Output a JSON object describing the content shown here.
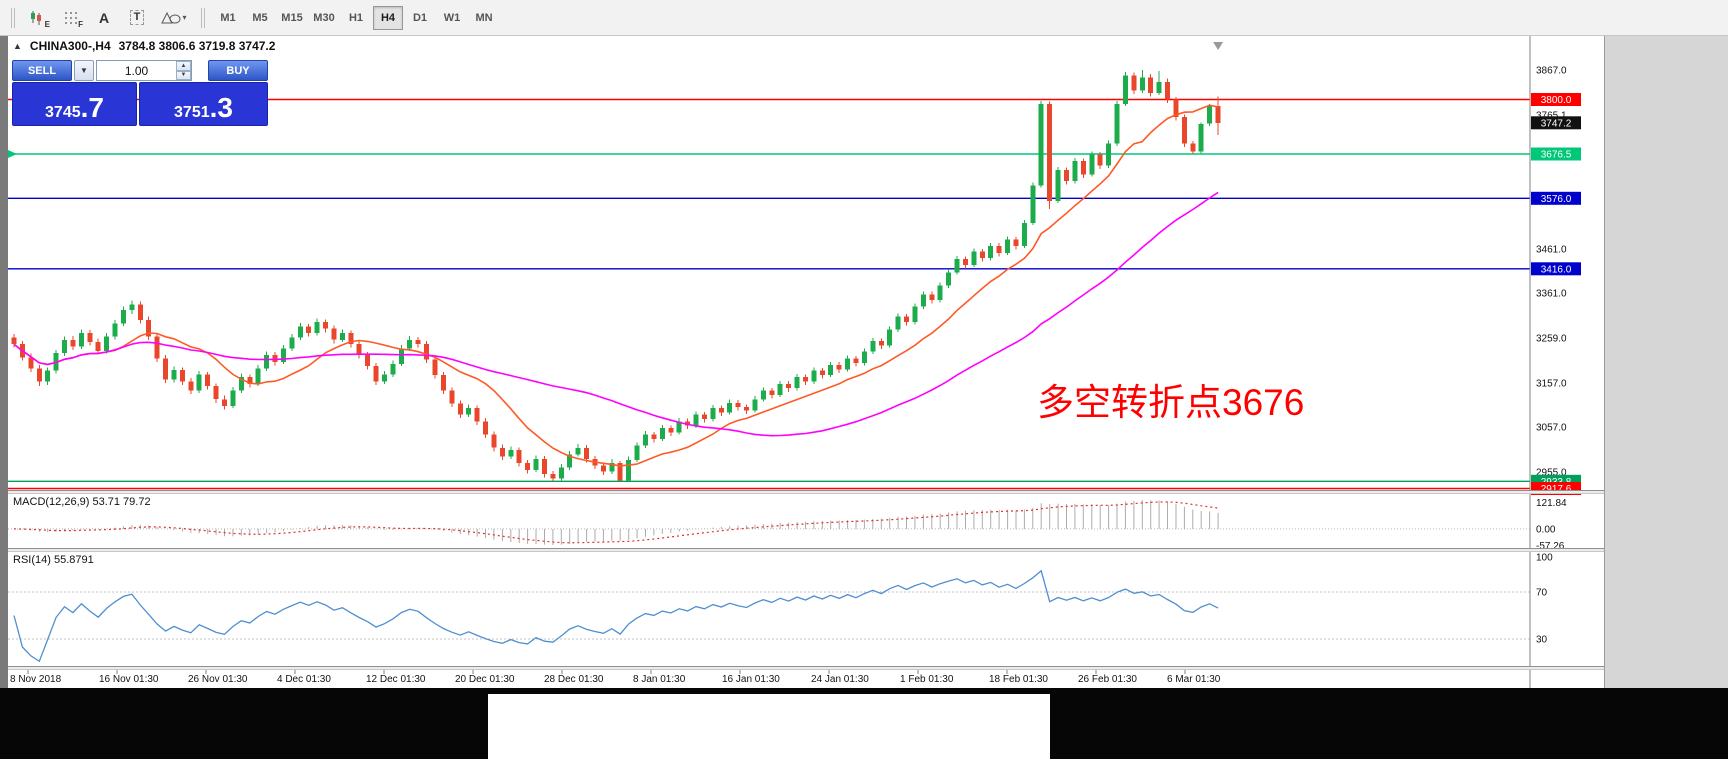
{
  "toolbar": {
    "tools": [
      {
        "id": "chart-expert",
        "glyph": "E"
      },
      {
        "id": "grid",
        "glyph": "F"
      },
      {
        "id": "text-label",
        "glyph": "A"
      },
      {
        "id": "text-box",
        "glyph": "T"
      },
      {
        "id": "shapes",
        "glyph": "▾"
      }
    ],
    "timeframes": [
      "M1",
      "M5",
      "M15",
      "M30",
      "H1",
      "H4",
      "D1",
      "W1",
      "MN"
    ],
    "active_timeframe": "H4"
  },
  "chart": {
    "expand_marker": "▲",
    "title": "CHINA300-,H4",
    "ohlc_text": "3784.8 3806.6 3719.8 3747.2",
    "annotation": {
      "text": "多空转折点3676",
      "color": "#ff0000"
    },
    "axis_prices": [
      3867.0,
      3765.1,
      3461.0,
      3361.0,
      3259.0,
      3157.0,
      3057.0,
      2955.0
    ],
    "hlines": [
      {
        "price": 3800.0,
        "label": "3800.0",
        "color": "#ff0000"
      },
      {
        "price": 3676.5,
        "label": "3676.5",
        "color": "#00c878",
        "marker": true
      },
      {
        "price": 3576.0,
        "label": "3576.0",
        "color": "#0000cc"
      },
      {
        "price": 3416.0,
        "label": "3416.0",
        "color": "#0000cc"
      },
      {
        "price": 2933.8,
        "label": "2933.8",
        "color": "#00a05a"
      },
      {
        "price": 2917.6,
        "label": "2917.6",
        "color": "#ff0000"
      }
    ],
    "current_price": {
      "price": 3747.2,
      "label": "3747.2",
      "color": "#111111"
    }
  },
  "trade_panel": {
    "sell_label": "SELL",
    "buy_label": "BUY",
    "volume": "1.00",
    "sell_price": {
      "main": "3745",
      "frac": ".7"
    },
    "buy_price": {
      "main": "3751",
      "frac": ".3"
    }
  },
  "macd": {
    "header": "MACD(12,26,9) 53.71 79.72",
    "axis": [
      "121.84",
      "0.00",
      "-57.26"
    ]
  },
  "rsi": {
    "header": "RSI(14) 55.8791",
    "axis": [
      "100",
      "70",
      "30"
    ],
    "levels": [
      70,
      30
    ]
  },
  "time_axis": [
    "8 Nov 2018",
    "16 Nov 01:30",
    "26 Nov 01:30",
    "4 Dec 01:30",
    "12 Dec 01:30",
    "20 Dec 01:30",
    "28 Dec 01:30",
    "8 Jan 01:30",
    "16 Jan 01:30",
    "24 Jan 01:30",
    "1 Feb 01:30",
    "18 Feb 01:30",
    "26 Feb 01:30",
    "6 Mar 01:30"
  ],
  "chart_data": {
    "type": "candlestick",
    "symbol": "CHINA300-",
    "timeframe": "H4",
    "title": "CHINA300-,H4",
    "last_ohlc": {
      "open": 3784.8,
      "high": 3806.6,
      "low": 3719.8,
      "close": 3747.2
    },
    "y_axis_range": [
      2917.6,
      3867.0
    ],
    "colors": {
      "up": "#1cac4b",
      "down": "#e8472b",
      "ma_fast": "#ff5a26",
      "ma_slow": "#ff00ff",
      "rsi": "#4f8fd0",
      "macd_hist": "#ababab",
      "macd_signal": "#e03030"
    },
    "overlays": [
      {
        "name": "MA fast",
        "type": "sma",
        "period": 12,
        "color": "#ff5a26"
      },
      {
        "name": "MA slow",
        "type": "sma",
        "period": 40,
        "color": "#ff00ff"
      }
    ],
    "indicators": [
      {
        "name": "MACD",
        "params": [
          12,
          26,
          9
        ],
        "values": [
          53.71,
          79.72
        ]
      },
      {
        "name": "RSI",
        "params": [
          14
        ],
        "values": [
          55.8791
        ]
      }
    ],
    "candles": [
      [
        3260,
        3268,
        3238,
        3245
      ],
      [
        3245,
        3252,
        3208,
        3215
      ],
      [
        3215,
        3224,
        3182,
        3190
      ],
      [
        3190,
        3198,
        3150,
        3160
      ],
      [
        3160,
        3192,
        3152,
        3185
      ],
      [
        3185,
        3232,
        3178,
        3225
      ],
      [
        3225,
        3262,
        3218,
        3255
      ],
      [
        3255,
        3264,
        3232,
        3240
      ],
      [
        3240,
        3278,
        3234,
        3270
      ],
      [
        3270,
        3277,
        3242,
        3250
      ],
      [
        3250,
        3258,
        3222,
        3230
      ],
      [
        3230,
        3270,
        3224,
        3262
      ],
      [
        3262,
        3300,
        3256,
        3292
      ],
      [
        3292,
        3330,
        3286,
        3322
      ],
      [
        3322,
        3344,
        3314,
        3335
      ],
      [
        3335,
        3342,
        3292,
        3300
      ],
      [
        3300,
        3308,
        3254,
        3262
      ],
      [
        3262,
        3270,
        3204,
        3212
      ],
      [
        3212,
        3220,
        3157,
        3165
      ],
      [
        3165,
        3194,
        3158,
        3186
      ],
      [
        3186,
        3192,
        3152,
        3160
      ],
      [
        3160,
        3168,
        3132,
        3140
      ],
      [
        3140,
        3184,
        3134,
        3176
      ],
      [
        3176,
        3182,
        3142,
        3150
      ],
      [
        3150,
        3156,
        3112,
        3120
      ],
      [
        3120,
        3128,
        3097,
        3105
      ],
      [
        3105,
        3148,
        3100,
        3140
      ],
      [
        3140,
        3178,
        3134,
        3170
      ],
      [
        3170,
        3176,
        3147,
        3155
      ],
      [
        3155,
        3198,
        3150,
        3190
      ],
      [
        3190,
        3228,
        3184,
        3220
      ],
      [
        3220,
        3227,
        3197,
        3205
      ],
      [
        3205,
        3243,
        3200,
        3235
      ],
      [
        3235,
        3268,
        3230,
        3260
      ],
      [
        3260,
        3293,
        3255,
        3285
      ],
      [
        3285,
        3291,
        3262,
        3270
      ],
      [
        3270,
        3303,
        3265,
        3295
      ],
      [
        3295,
        3301,
        3272,
        3280
      ],
      [
        3280,
        3287,
        3247,
        3255
      ],
      [
        3255,
        3278,
        3250,
        3270
      ],
      [
        3270,
        3276,
        3237,
        3245
      ],
      [
        3245,
        3252,
        3212,
        3220
      ],
      [
        3220,
        3227,
        3187,
        3195
      ],
      [
        3195,
        3202,
        3152,
        3160
      ],
      [
        3160,
        3184,
        3155,
        3176
      ],
      [
        3176,
        3208,
        3170,
        3200
      ],
      [
        3200,
        3243,
        3195,
        3235
      ],
      [
        3235,
        3263,
        3230,
        3255
      ],
      [
        3255,
        3261,
        3237,
        3245
      ],
      [
        3245,
        3252,
        3202,
        3210
      ],
      [
        3210,
        3217,
        3167,
        3175
      ],
      [
        3175,
        3182,
        3132,
        3140
      ],
      [
        3140,
        3147,
        3102,
        3110
      ],
      [
        3110,
        3117,
        3077,
        3085
      ],
      [
        3085,
        3108,
        3080,
        3100
      ],
      [
        3100,
        3106,
        3062,
        3070
      ],
      [
        3070,
        3077,
        3032,
        3040
      ],
      [
        3040,
        3047,
        3002,
        3010
      ],
      [
        3010,
        3017,
        2982,
        2990
      ],
      [
        2990,
        3013,
        2985,
        3005
      ],
      [
        3005,
        3011,
        2967,
        2975
      ],
      [
        2975,
        2982,
        2952,
        2960
      ],
      [
        2960,
        2993,
        2955,
        2985
      ],
      [
        2985,
        2991,
        2942,
        2950
      ],
      [
        2950,
        2957,
        2934,
        2940
      ],
      [
        2940,
        2973,
        2936,
        2965
      ],
      [
        2965,
        3003,
        2960,
        2995
      ],
      [
        2995,
        3018,
        2990,
        3010
      ],
      [
        3010,
        3016,
        2977,
        2985
      ],
      [
        2985,
        2991,
        2962,
        2970
      ],
      [
        2970,
        2977,
        2948,
        2956
      ],
      [
        2956,
        2984,
        2950,
        2975
      ],
      [
        2975,
        2980,
        2933.8,
        2936
      ],
      [
        2936,
        2990,
        2934,
        2982
      ],
      [
        2982,
        3022,
        2978,
        3015
      ],
      [
        3015,
        3048,
        3010,
        3040
      ],
      [
        3040,
        3046,
        3022,
        3030
      ],
      [
        3030,
        3062,
        3025,
        3055
      ],
      [
        3055,
        3061,
        3037,
        3045
      ],
      [
        3045,
        3077,
        3040,
        3070
      ],
      [
        3070,
        3076,
        3052,
        3060
      ],
      [
        3060,
        3092,
        3055,
        3085
      ],
      [
        3085,
        3091,
        3067,
        3075
      ],
      [
        3075,
        3107,
        3070,
        3100
      ],
      [
        3100,
        3106,
        3082,
        3090
      ],
      [
        3090,
        3119,
        3085,
        3112
      ],
      [
        3112,
        3118,
        3094,
        3102
      ],
      [
        3102,
        3108,
        3087,
        3095
      ],
      [
        3095,
        3127,
        3090,
        3120
      ],
      [
        3120,
        3147,
        3115,
        3140
      ],
      [
        3140,
        3146,
        3122,
        3130
      ],
      [
        3130,
        3162,
        3125,
        3155
      ],
      [
        3155,
        3161,
        3137,
        3145
      ],
      [
        3145,
        3177,
        3140,
        3170
      ],
      [
        3170,
        3176,
        3152,
        3160
      ],
      [
        3160,
        3192,
        3155,
        3185
      ],
      [
        3185,
        3191,
        3167,
        3175
      ],
      [
        3175,
        3205,
        3170,
        3198
      ],
      [
        3198,
        3204,
        3180,
        3188
      ],
      [
        3188,
        3219,
        3183,
        3212
      ],
      [
        3212,
        3218,
        3194,
        3202
      ],
      [
        3202,
        3235,
        3197,
        3228
      ],
      [
        3228,
        3259,
        3223,
        3252
      ],
      [
        3252,
        3258,
        3234,
        3242
      ],
      [
        3242,
        3285,
        3237,
        3278
      ],
      [
        3278,
        3315,
        3273,
        3308
      ],
      [
        3308,
        3314,
        3287,
        3295
      ],
      [
        3295,
        3337,
        3290,
        3330
      ],
      [
        3330,
        3365,
        3325,
        3358
      ],
      [
        3358,
        3364,
        3337,
        3345
      ],
      [
        3345,
        3385,
        3340,
        3378
      ],
      [
        3378,
        3415,
        3373,
        3408
      ],
      [
        3408,
        3445,
        3403,
        3438
      ],
      [
        3438,
        3444,
        3417,
        3425
      ],
      [
        3425,
        3462,
        3420,
        3455
      ],
      [
        3455,
        3461,
        3432,
        3440
      ],
      [
        3440,
        3475,
        3435,
        3468
      ],
      [
        3468,
        3474,
        3444,
        3452
      ],
      [
        3452,
        3489,
        3447,
        3482
      ],
      [
        3482,
        3488,
        3460,
        3468
      ],
      [
        3468,
        3527,
        3463,
        3520
      ],
      [
        3520,
        3612,
        3515,
        3605
      ],
      [
        3605,
        3797,
        3600,
        3790
      ],
      [
        3790,
        3796,
        3552,
        3570
      ],
      [
        3570,
        3647,
        3565,
        3640
      ],
      [
        3640,
        3646,
        3607,
        3615
      ],
      [
        3615,
        3667,
        3610,
        3660
      ],
      [
        3660,
        3666,
        3622,
        3630
      ],
      [
        3630,
        3682,
        3625,
        3675
      ],
      [
        3675,
        3681,
        3642,
        3650
      ],
      [
        3650,
        3707,
        3645,
        3700
      ],
      [
        3700,
        3797,
        3695,
        3790
      ],
      [
        3790,
        3862,
        3785,
        3855
      ],
      [
        3855,
        3861,
        3812,
        3820
      ],
      [
        3820,
        3867,
        3815,
        3850
      ],
      [
        3850,
        3858,
        3807,
        3815
      ],
      [
        3815,
        3865,
        3810,
        3840
      ],
      [
        3840,
        3848,
        3792,
        3800
      ],
      [
        3800,
        3806,
        3752,
        3760
      ],
      [
        3760,
        3766,
        3692,
        3700
      ],
      [
        3700,
        3706,
        3676.5,
        3682
      ],
      [
        3682,
        3748,
        3678,
        3745
      ],
      [
        3745,
        3790,
        3740,
        3785
      ],
      [
        3784.8,
        3806.6,
        3719.8,
        3747.2
      ]
    ]
  }
}
